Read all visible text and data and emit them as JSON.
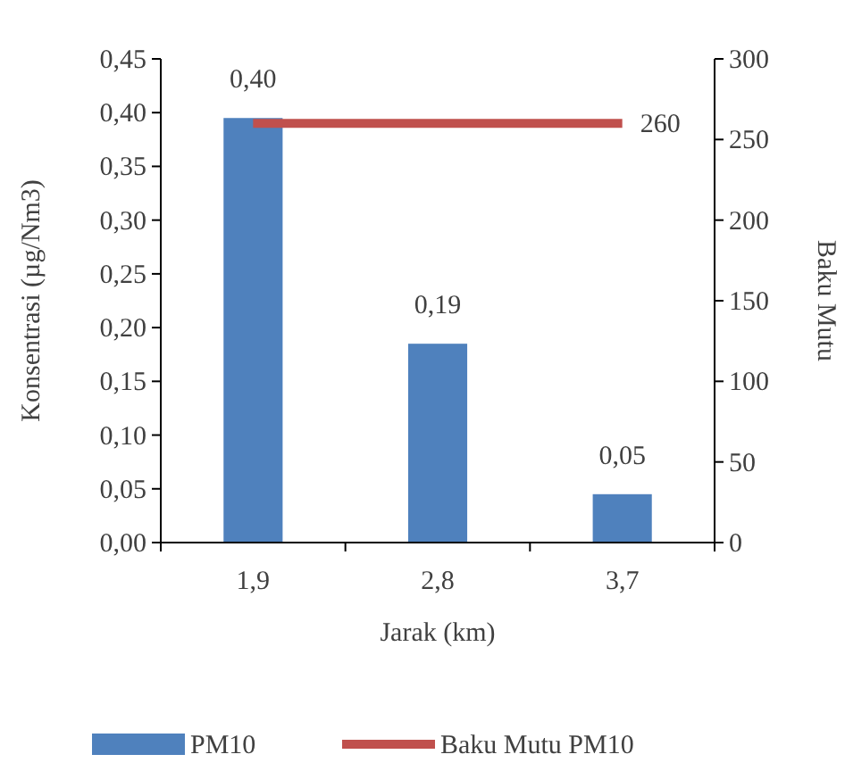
{
  "chart_data": {
    "type": "bar",
    "xlabel": "Jarak (km)",
    "ylabel": "Konsentrasi (µg/Nm3)",
    "y2label": "Baku Mutu",
    "categories": [
      "1,9",
      "2,8",
      "3,7"
    ],
    "series": [
      {
        "name": "PM10",
        "color": "#4f81bd",
        "values": [
          0.395,
          0.185,
          0.045
        ],
        "value_labels": [
          "0,40",
          "0,19",
          "0,05"
        ]
      },
      {
        "name": "Baku Mutu PM10",
        "type": "line",
        "axis": "y2",
        "color": "#c0504d",
        "values": [
          260,
          260,
          260
        ],
        "value_labels": [
          null,
          null,
          "260"
        ]
      }
    ],
    "ylim": [
      0,
      0.45
    ],
    "yticks": [
      {
        "value": 0,
        "label": "0,00"
      },
      {
        "value": 0.05,
        "label": "0,05"
      },
      {
        "value": 0.1,
        "label": "0,10"
      },
      {
        "value": 0.15,
        "label": "0,15"
      },
      {
        "value": 0.2,
        "label": "0,20"
      },
      {
        "value": 0.25,
        "label": "0,25"
      },
      {
        "value": 0.3,
        "label": "0,30"
      },
      {
        "value": 0.35,
        "label": "0,35"
      },
      {
        "value": 0.4,
        "label": "0,40"
      },
      {
        "value": 0.45,
        "label": "0,45"
      }
    ],
    "y2lim": [
      0,
      300
    ],
    "y2ticks": [
      0,
      50,
      100,
      150,
      200,
      250,
      300
    ],
    "legend": "bottom",
    "grid": false,
    "marker": "none",
    "line_style": "solid"
  }
}
